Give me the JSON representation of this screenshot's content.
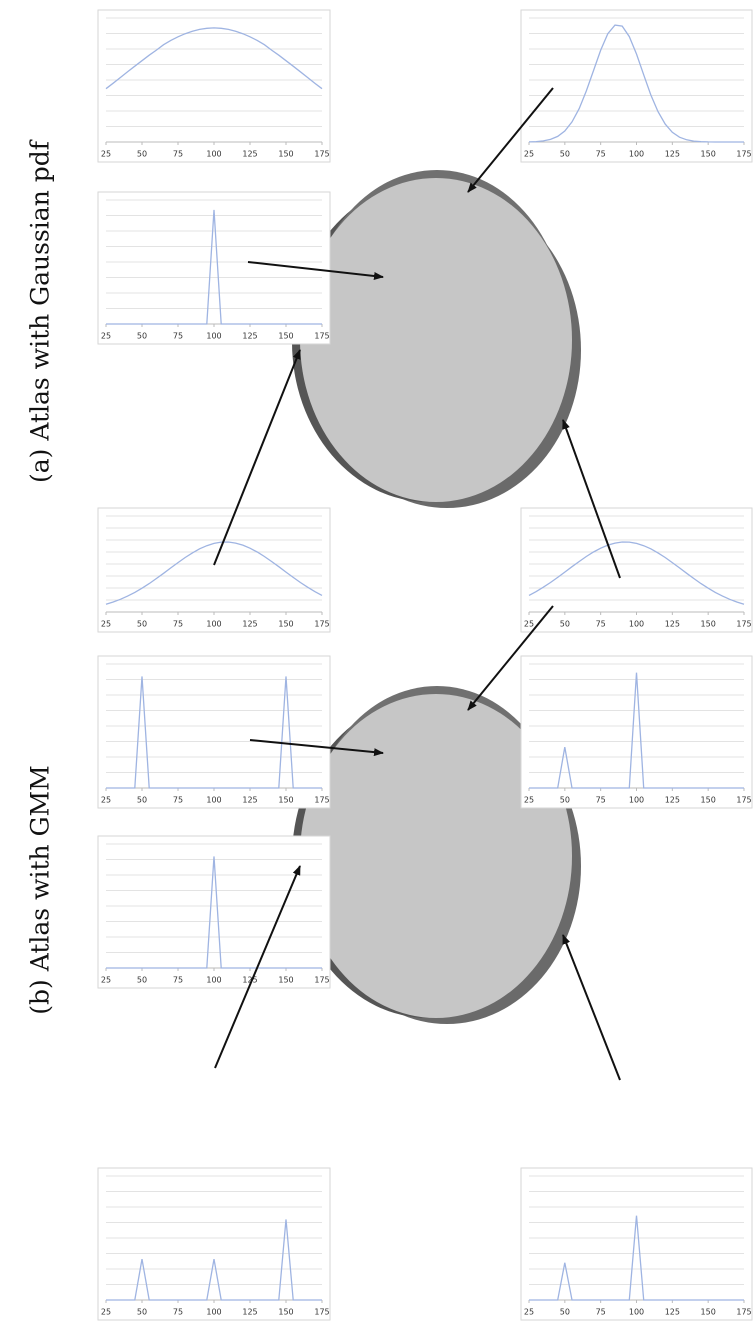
{
  "figure_labels": [
    "(a) Atlas with Gaussian pdf",
    "(b) Atlas with GMM"
  ],
  "chart_data": [
    {
      "type": "line",
      "x": [
        25,
        30,
        35,
        40,
        45,
        50,
        55,
        60,
        65,
        70,
        75,
        80,
        85,
        90,
        95,
        100,
        105,
        110,
        115,
        120,
        125,
        130,
        135,
        140,
        145,
        150,
        155,
        160,
        165,
        170,
        175
      ],
      "series": [
        {
          "color": "#9fb4e2",
          "values": [
            0.43,
            0.474,
            0.52,
            0.566,
            0.611,
            0.656,
            0.7,
            0.741,
            0.785,
            0.819,
            0.848,
            0.873,
            0.893,
            0.908,
            0.917,
            0.92,
            0.917,
            0.908,
            0.893,
            0.873,
            0.848,
            0.819,
            0.785,
            0.741,
            0.7,
            0.656,
            0.611,
            0.566,
            0.52,
            0.474,
            0.43
          ]
        }
      ],
      "xlim": [
        25,
        175
      ],
      "xticks": [
        25,
        50,
        75,
        100,
        125,
        150,
        175
      ],
      "ylim": [
        0,
        1
      ],
      "yticks": [
        0,
        0.125,
        0.25,
        0.375,
        0.5,
        0.625,
        0.75,
        0.875,
        1
      ],
      "grid": true
    },
    {
      "type": "line",
      "x": [
        25,
        30,
        35,
        40,
        45,
        50,
        55,
        60,
        65,
        70,
        75,
        80,
        85,
        90,
        95,
        100,
        105,
        110,
        115,
        120,
        125,
        130,
        135,
        140,
        145,
        150,
        155,
        160,
        165,
        170,
        175
      ],
      "series": [
        {
          "color": "#9fb4e2",
          "values": [
            0.001,
            0.003,
            0.009,
            0.021,
            0.045,
            0.089,
            0.162,
            0.269,
            0.411,
            0.576,
            0.741,
            0.873,
            0.943,
            0.935,
            0.85,
            0.71,
            0.542,
            0.38,
            0.245,
            0.144,
            0.078,
            0.039,
            0.018,
            0.007,
            0.003,
            0.001,
            0,
            0,
            0,
            0,
            0
          ]
        }
      ],
      "xlim": [
        25,
        175
      ],
      "xticks": [
        25,
        50,
        75,
        100,
        125,
        150,
        175
      ],
      "ylim": [
        0,
        1
      ],
      "yticks": [
        0,
        0.125,
        0.25,
        0.375,
        0.5,
        0.625,
        0.75,
        0.875,
        1
      ],
      "grid": true
    },
    {
      "type": "line",
      "x": [
        25,
        30,
        35,
        40,
        45,
        50,
        55,
        60,
        65,
        70,
        75,
        80,
        85,
        90,
        95,
        100,
        105,
        110,
        115,
        120,
        125,
        130,
        135,
        140,
        145,
        150,
        155,
        160,
        165,
        170,
        175
      ],
      "series": [
        {
          "color": "#9fb4e2",
          "values": [
            0,
            0,
            0,
            0,
            0,
            0,
            0,
            0,
            0,
            0,
            0,
            0,
            0,
            0,
            0,
            0.92,
            0,
            0,
            0,
            0,
            0,
            0,
            0,
            0,
            0,
            0,
            0,
            0,
            0,
            0,
            0
          ]
        }
      ],
      "xlim": [
        25,
        175
      ],
      "xticks": [
        25,
        50,
        75,
        100,
        125,
        150,
        175
      ],
      "ylim": [
        0,
        1
      ],
      "yticks": [
        0,
        0.125,
        0.25,
        0.375,
        0.5,
        0.625,
        0.75,
        0.875,
        1
      ],
      "grid": true
    },
    {
      "type": "line",
      "x": [
        25,
        30,
        35,
        40,
        45,
        50,
        55,
        60,
        65,
        70,
        75,
        80,
        85,
        90,
        95,
        100,
        105,
        110,
        115,
        120,
        125,
        130,
        135,
        140,
        145,
        150,
        155,
        160,
        165,
        170,
        175
      ],
      "series": [
        {
          "color": "#9fb4e2",
          "values": [
            0.08,
            0.104,
            0.132,
            0.166,
            0.204,
            0.248,
            0.296,
            0.349,
            0.403,
            0.459,
            0.515,
            0.568,
            0.616,
            0.658,
            0.691,
            0.715,
            0.728,
            0.729,
            0.718,
            0.697,
            0.665,
            0.625,
            0.578,
            0.526,
            0.472,
            0.416,
            0.36,
            0.307,
            0.258,
            0.213,
            0.173
          ]
        }
      ],
      "xlim": [
        25,
        175
      ],
      "xticks": [
        25,
        50,
        75,
        100,
        125,
        150,
        175
      ],
      "ylim": [
        0,
        1
      ],
      "yticks": [
        0,
        0.125,
        0.25,
        0.375,
        0.5,
        0.625,
        0.75,
        0.875,
        1
      ],
      "grid": true
    },
    {
      "type": "line",
      "x": [
        25,
        30,
        35,
        40,
        45,
        50,
        55,
        60,
        65,
        70,
        75,
        80,
        85,
        90,
        95,
        100,
        105,
        110,
        115,
        120,
        125,
        130,
        135,
        140,
        145,
        150,
        155,
        160,
        165,
        170,
        175
      ],
      "series": [
        {
          "color": "#9fb4e2",
          "values": [
            0.173,
            0.213,
            0.258,
            0.307,
            0.36,
            0.416,
            0.472,
            0.526,
            0.578,
            0.625,
            0.665,
            0.697,
            0.718,
            0.729,
            0.728,
            0.715,
            0.691,
            0.658,
            0.616,
            0.568,
            0.515,
            0.459,
            0.403,
            0.349,
            0.296,
            0.248,
            0.204,
            0.166,
            0.132,
            0.104,
            0.08
          ]
        }
      ],
      "xlim": [
        25,
        175
      ],
      "xticks": [
        25,
        50,
        75,
        100,
        125,
        150,
        175
      ],
      "ylim": [
        0,
        1
      ],
      "yticks": [
        0,
        0.125,
        0.25,
        0.375,
        0.5,
        0.625,
        0.75,
        0.875,
        1
      ],
      "grid": true
    },
    {
      "type": "line",
      "x": [
        25,
        30,
        35,
        40,
        45,
        50,
        55,
        60,
        65,
        70,
        75,
        80,
        85,
        90,
        95,
        100,
        105,
        110,
        115,
        120,
        125,
        130,
        135,
        140,
        145,
        150,
        155,
        160,
        165,
        170,
        175
      ],
      "series": [
        {
          "color": "#9fb4e2",
          "values": [
            0,
            0,
            0,
            0,
            0,
            0.9,
            0,
            0,
            0,
            0,
            0,
            0,
            0,
            0,
            0,
            0,
            0,
            0,
            0,
            0,
            0,
            0,
            0,
            0,
            0,
            0.9,
            0,
            0,
            0,
            0,
            0
          ]
        }
      ],
      "xlim": [
        25,
        175
      ],
      "xticks": [
        25,
        50,
        75,
        100,
        125,
        150,
        175
      ],
      "ylim": [
        0,
        1
      ],
      "yticks": [
        0,
        0.125,
        0.25,
        0.375,
        0.5,
        0.625,
        0.75,
        0.875,
        1
      ],
      "grid": true
    },
    {
      "type": "line",
      "x": [
        25,
        30,
        35,
        40,
        45,
        50,
        55,
        60,
        65,
        70,
        75,
        80,
        85,
        90,
        95,
        100,
        105,
        110,
        115,
        120,
        125,
        130,
        135,
        140,
        145,
        150,
        155,
        160,
        165,
        170,
        175
      ],
      "series": [
        {
          "color": "#9fb4e2",
          "values": [
            0,
            0,
            0,
            0,
            0,
            0.33,
            0,
            0,
            0,
            0,
            0,
            0,
            0,
            0,
            0,
            0.93,
            0,
            0,
            0,
            0,
            0,
            0,
            0,
            0,
            0,
            0,
            0,
            0,
            0,
            0,
            0
          ]
        }
      ],
      "xlim": [
        25,
        175
      ],
      "xticks": [
        25,
        50,
        75,
        100,
        125,
        150,
        175
      ],
      "ylim": [
        0,
        1
      ],
      "yticks": [
        0,
        0.125,
        0.25,
        0.375,
        0.5,
        0.625,
        0.75,
        0.875,
        1
      ],
      "grid": true
    },
    {
      "type": "line",
      "x": [
        25,
        30,
        35,
        40,
        45,
        50,
        55,
        60,
        65,
        70,
        75,
        80,
        85,
        90,
        95,
        100,
        105,
        110,
        115,
        120,
        125,
        130,
        135,
        140,
        145,
        150,
        155,
        160,
        165,
        170,
        175
      ],
      "series": [
        {
          "color": "#9fb4e2",
          "values": [
            0,
            0,
            0,
            0,
            0,
            0,
            0,
            0,
            0,
            0,
            0,
            0,
            0,
            0,
            0,
            0.9,
            0,
            0,
            0,
            0,
            0,
            0,
            0,
            0,
            0,
            0,
            0,
            0,
            0,
            0,
            0
          ]
        }
      ],
      "xlim": [
        25,
        175
      ],
      "xticks": [
        25,
        50,
        75,
        100,
        125,
        150,
        175
      ],
      "ylim": [
        0,
        1
      ],
      "yticks": [
        0,
        0.125,
        0.25,
        0.375,
        0.5,
        0.625,
        0.75,
        0.875,
        1
      ],
      "grid": true
    },
    {
      "type": "line",
      "x": [
        25,
        30,
        35,
        40,
        45,
        50,
        55,
        60,
        65,
        70,
        75,
        80,
        85,
        90,
        95,
        100,
        105,
        110,
        115,
        120,
        125,
        130,
        135,
        140,
        145,
        150,
        155,
        160,
        165,
        170,
        175
      ],
      "series": [
        {
          "color": "#9fb4e2",
          "values": [
            0,
            0,
            0,
            0,
            0,
            0.33,
            0,
            0,
            0,
            0,
            0,
            0,
            0,
            0,
            0,
            0.33,
            0,
            0,
            0,
            0,
            0,
            0,
            0,
            0,
            0,
            0.65,
            0,
            0,
            0,
            0,
            0
          ]
        }
      ],
      "xlim": [
        25,
        175
      ],
      "xticks": [
        25,
        50,
        75,
        100,
        125,
        150,
        175
      ],
      "ylim": [
        0,
        1
      ],
      "yticks": [
        0,
        0.125,
        0.25,
        0.375,
        0.5,
        0.625,
        0.75,
        0.875,
        1
      ],
      "grid": true
    },
    {
      "type": "line",
      "x": [
        25,
        30,
        35,
        40,
        45,
        50,
        55,
        60,
        65,
        70,
        75,
        80,
        85,
        90,
        95,
        100,
        105,
        110,
        115,
        120,
        125,
        130,
        135,
        140,
        145,
        150,
        155,
        160,
        165,
        170,
        175
      ],
      "series": [
        {
          "color": "#9fb4e2",
          "values": [
            0,
            0,
            0,
            0,
            0,
            0.3,
            0,
            0,
            0,
            0,
            0,
            0,
            0,
            0,
            0,
            0.68,
            0,
            0,
            0,
            0,
            0,
            0,
            0,
            0,
            0,
            0,
            0,
            0,
            0,
            0,
            0
          ]
        }
      ],
      "xlim": [
        25,
        175
      ],
      "xticks": [
        25,
        50,
        75,
        100,
        125,
        150,
        175
      ],
      "ylim": [
        0,
        1
      ],
      "yticks": [
        0,
        0.125,
        0.25,
        0.375,
        0.5,
        0.625,
        0.75,
        0.875,
        1
      ],
      "grid": true
    }
  ]
}
